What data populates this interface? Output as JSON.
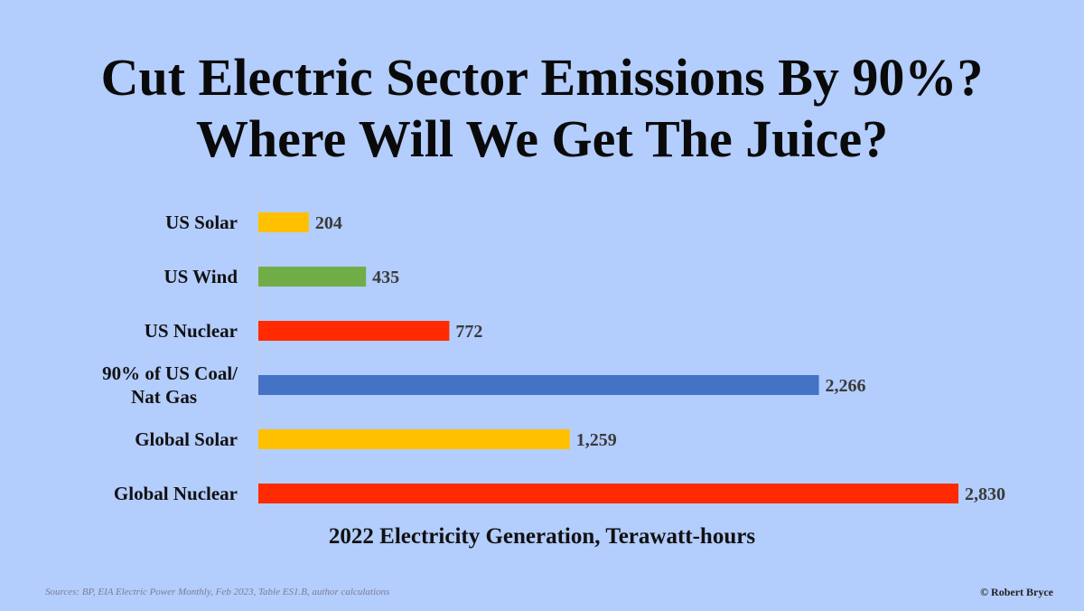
{
  "title_lines": [
    "Cut Electric Sector Emissions By 90%?",
    "Where Will We Get The Juice?"
  ],
  "footer": {
    "source": "Sources: BP, EIA Electric Power Monthly, Feb 2023, Table ES1.B, author calculations",
    "credit": "© Robert Bryce"
  },
  "chart_data": {
    "type": "bar",
    "orientation": "horizontal",
    "title": "Cut Electric Sector Emissions By 90%? Where Will We Get The Juice?",
    "xlabel": "2022 Electricity Generation, Terawatt-hours",
    "ylabel": "",
    "xlim": [
      0,
      2830
    ],
    "grid": false,
    "legend": "none",
    "categories": [
      [
        "US Solar"
      ],
      [
        "US Wind"
      ],
      [
        "US Nuclear"
      ],
      [
        "90% of US Coal/",
        "Nat Gas"
      ],
      [
        "Global Solar"
      ],
      [
        "Global Nuclear"
      ]
    ],
    "values": [
      204,
      435,
      772,
      2266,
      1259,
      2830
    ],
    "value_labels": [
      "204",
      "435",
      "772",
      "2,266",
      "1,259",
      "2,830"
    ],
    "colors": [
      "#ffc000",
      "#70ad47",
      "#ff2a00",
      "#4472c4",
      "#ffc000",
      "#ff2a00"
    ]
  }
}
